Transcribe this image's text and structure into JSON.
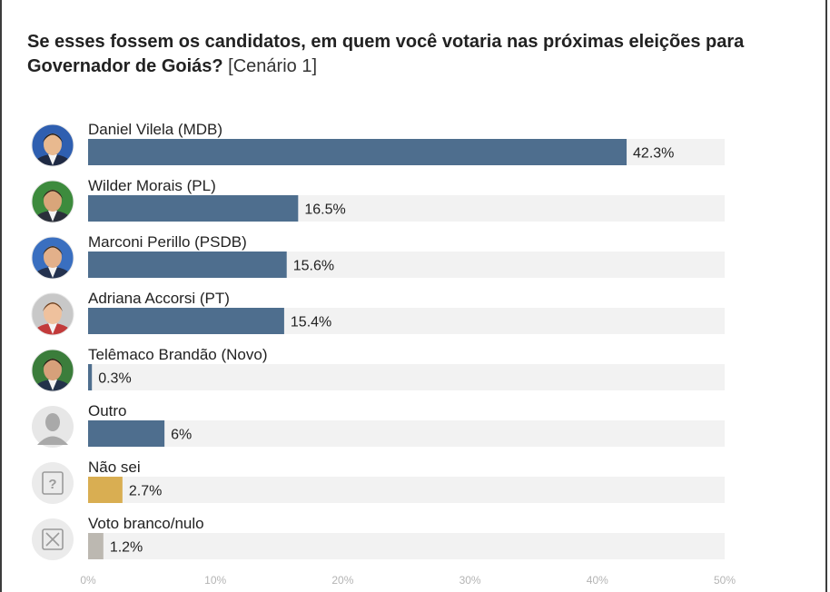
{
  "title": {
    "bold": "Se esses fossem os candidatos, em quem você votaria nas próximas eleições para Governador de Goiás?",
    "light": "[Cenário 1]"
  },
  "chart_data": {
    "type": "bar",
    "orientation": "horizontal",
    "categories": [
      "Daniel Vilela (MDB)",
      "Wilder Morais (PL)",
      "Marconi Perillo (PSDB)",
      "Adriana Accorsi (PT)",
      "Telêmaco Brandão (Novo)",
      "Outro",
      "Não sei",
      "Voto branco/nulo"
    ],
    "values": [
      42.3,
      16.5,
      15.6,
      15.4,
      0.3,
      6,
      2.7,
      1.2
    ],
    "value_labels": [
      "42.3%",
      "16.5%",
      "15.6%",
      "15.4%",
      "0.3%",
      "6%",
      "2.7%",
      "1.2%"
    ],
    "bar_colors": [
      "#4e6e8e",
      "#4e6e8e",
      "#4e6e8e",
      "#4e6e8e",
      "#4e6e8e",
      "#4e6e8e",
      "#d9ae52",
      "#bcb8b1"
    ],
    "avatar_types": [
      "photo",
      "photo",
      "photo",
      "photo",
      "photo",
      "person-silhouette-icon",
      "question-mark-icon",
      "x-box-icon"
    ],
    "xlim": [
      0,
      50
    ],
    "xticks": [
      "0%",
      "10%",
      "20%",
      "30%",
      "40%",
      "50%"
    ],
    "grid": false,
    "track_color": "#f2f2f2"
  }
}
